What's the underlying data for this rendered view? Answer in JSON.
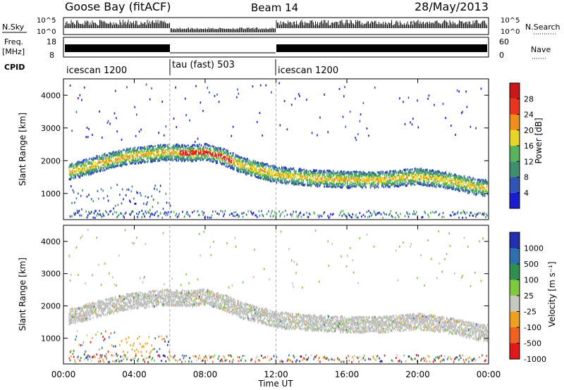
{
  "header": {
    "station": "Goose Bay (fitACF)",
    "beam": "Beam 14",
    "date": "28/May/2013"
  },
  "summary_panels": {
    "nsky_label": "N.Sky",
    "nsky_ticks": [
      "10^5",
      "10^0"
    ],
    "nsearch_label": "N.Search",
    "nsearch_ticks": [
      "10^5",
      "10^0"
    ],
    "freq_label": "Freq.",
    "freq_unit": "[MHz]",
    "freq_ticks": [
      "18",
      "8"
    ],
    "nave_label": "Nave",
    "nave_ticks": [
      "60",
      "0"
    ],
    "cpid_label": "CPID",
    "cpid_segments": [
      {
        "label": "icescan 1200",
        "start_hour": 0,
        "end_hour": 6
      },
      {
        "label": "tau (fast) 503",
        "start_hour": 6,
        "end_hour": 12
      },
      {
        "label": "icescan 1200",
        "start_hour": 12,
        "end_hour": 24
      }
    ]
  },
  "chart_data": [
    {
      "type": "heatmap",
      "name": "power-panel",
      "ylabel": "Slant Range [km]",
      "xlim": [
        0,
        24
      ],
      "ylim": [
        200,
        4500
      ],
      "yticks": [
        "1000",
        "2000",
        "3000",
        "4000"
      ],
      "colorbar": {
        "label": "Power [dB]",
        "ticks": [
          "4",
          "8",
          "12",
          "16",
          "20",
          "24",
          "28"
        ],
        "colors": [
          "#1b1bd0",
          "#2f55b8",
          "#3f8f6f",
          "#57b35a",
          "#e8d52a",
          "#f08c1c",
          "#e8341c",
          "#c81818"
        ]
      },
      "scatter_bands": [
        {
          "name": "main-echo",
          "hours": [
            0.5,
            2,
            3.5,
            5,
            6,
            7,
            8,
            9,
            10,
            11,
            12,
            14,
            16,
            18,
            20,
            22,
            23.5
          ],
          "ranges": [
            1700,
            1950,
            2150,
            2250,
            2300,
            2250,
            2300,
            2150,
            1900,
            1750,
            1600,
            1500,
            1450,
            1450,
            1550,
            1400,
            1200
          ]
        }
      ]
    },
    {
      "type": "heatmap",
      "name": "velocity-panel",
      "ylabel": "Slant Range [km]",
      "xlim": [
        0,
        24
      ],
      "ylim": [
        200,
        4500
      ],
      "yticks": [
        "1000",
        "2000",
        "3000",
        "4000"
      ],
      "xticks": [
        "00:00",
        "04:00",
        "08:00",
        "12:00",
        "16:00",
        "20:00",
        "00:00"
      ],
      "xlabel": "Time UT",
      "colorbar": {
        "label": "Velocity [m s⁻¹]",
        "ticks": [
          "1000",
          "500",
          "100",
          "25",
          "-25",
          "-100",
          "-500",
          "-1000"
        ],
        "colors": [
          "#1f2fb0",
          "#2f6fb0",
          "#2f8f4f",
          "#7fc83f",
          "#c8c8c0",
          "#f0a020",
          "#f06020",
          "#e01818"
        ]
      }
    }
  ],
  "colors": {
    "ground_scatter": "#c0c0c0",
    "divider": "#b0b0b0"
  }
}
